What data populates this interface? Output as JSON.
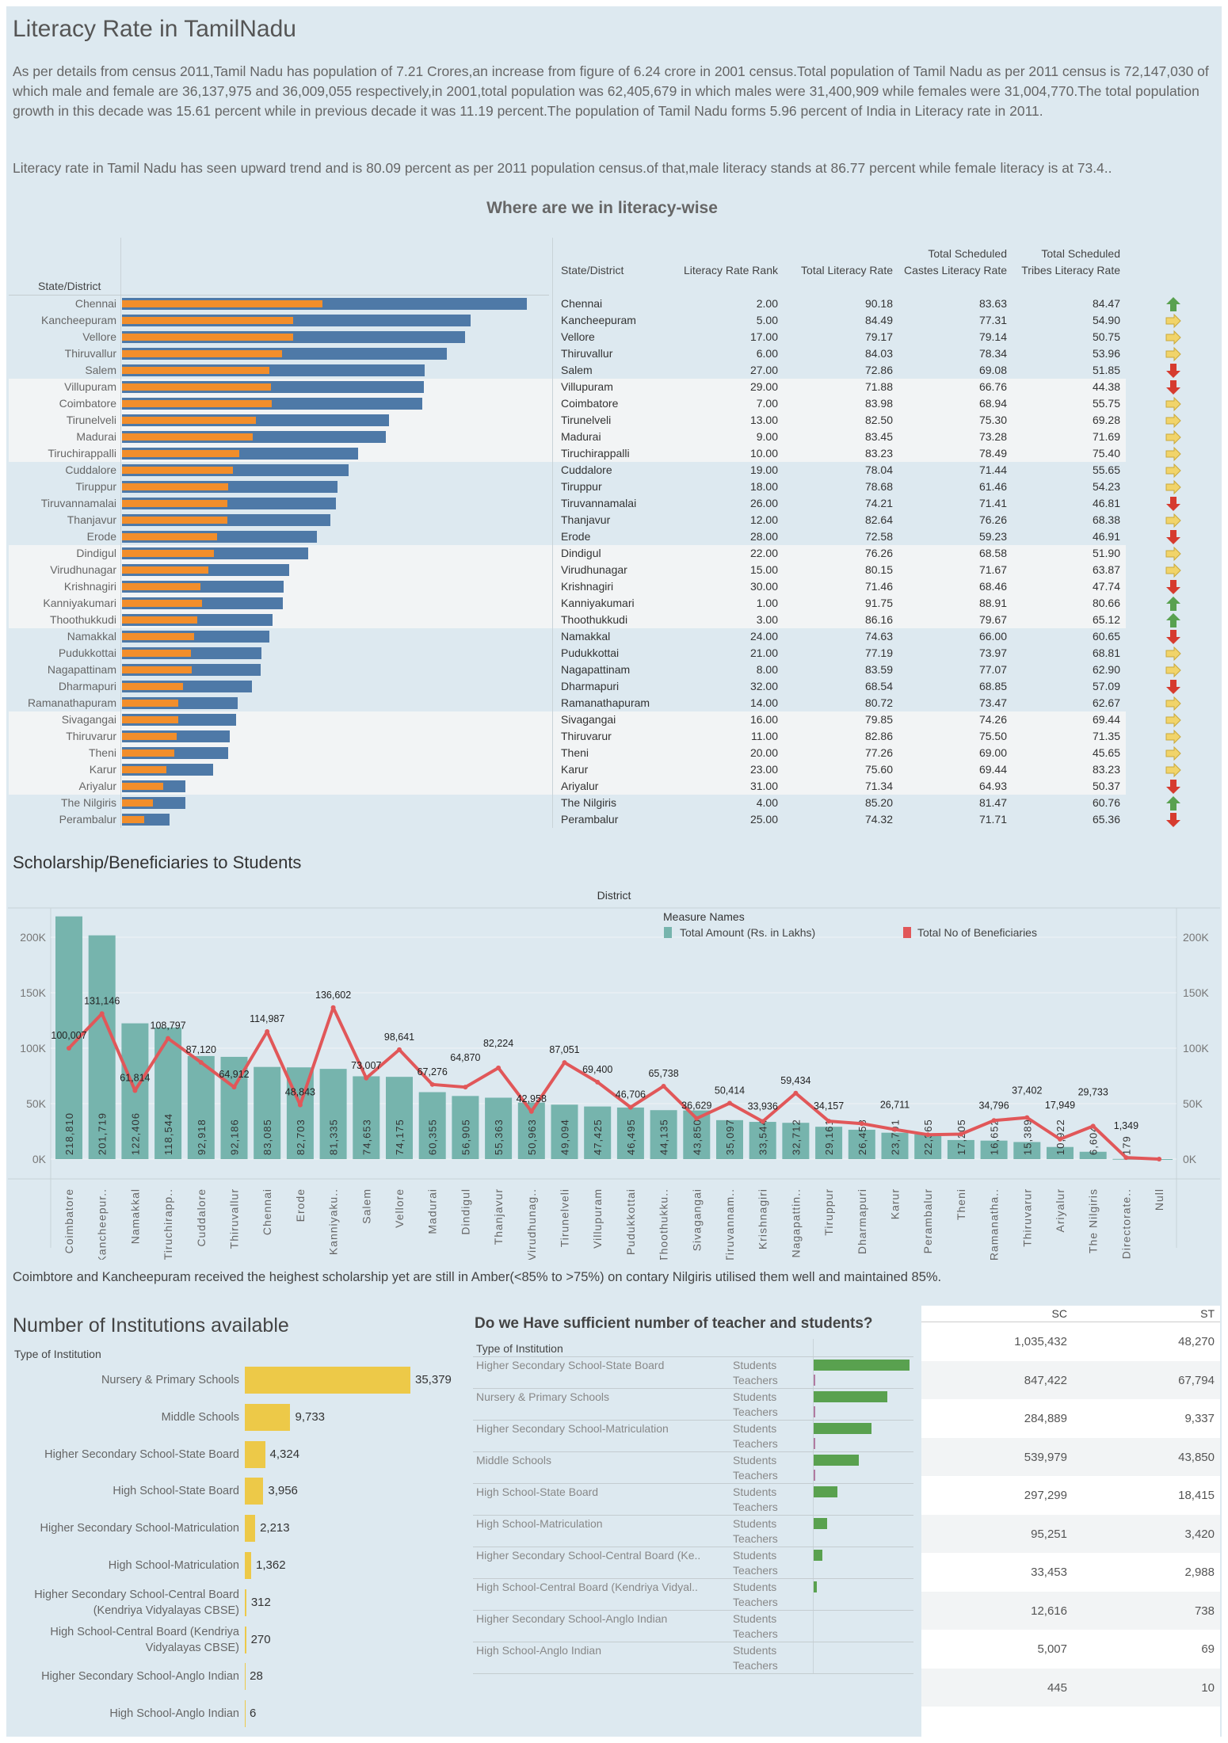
{
  "header": {
    "title": "Literacy Rate in TamilNadu",
    "paragraph1": "As per details from census 2011,Tamil Nadu has population of 7.21 Crores,an increase from figure of 6.24 crore in 2001 census.Total population of Tamil Nadu as per 2011 census is 72,147,030 of which male and female are 36,137,975 and 36,009,055 respectively,in 2001,total population was 62,405,679 in which males were 31,400,909 while females were 31,004,770.The total population growth in this decade was 15.61 percent while in previous decade it was 11.19 percent.The population of Tamil Nadu forms 5.96 percent of India in Literacy rate in 2011.",
    "paragraph2": "Literacy rate in Tamil Nadu has seen upward trend and is 80.09 percent as per 2011 population census.of that,male literacy stands at 86.77 percent while female literacy is at 73.4.."
  },
  "literacy": {
    "title": "Where are we  in literacy-wise",
    "bar_header": "State/District",
    "columns": [
      "State/District",
      "Literacy Rate Rank",
      "Total Literacy Rate",
      "Total Scheduled Castes Literacy Rate",
      "Total Scheduled Tribes Literacy Rate"
    ],
    "colors": {
      "blue": "#4e79a7",
      "orange": "#f28e2b",
      "up": "#59a14f",
      "right": "#f1d46a",
      "down": "#d63b2f"
    },
    "rows": [
      [
        "Chennai",
        "2.00",
        "90.18",
        "83.63",
        "84.47",
        "up",
        365,
        181
      ],
      [
        "Kancheepuram",
        "5.00",
        "84.49",
        "77.31",
        "54.90",
        "right",
        314,
        154
      ],
      [
        "Vellore",
        "17.00",
        "79.17",
        "79.14",
        "50.75",
        "right",
        309,
        154
      ],
      [
        "Thiruvallur",
        "6.00",
        "84.03",
        "78.34",
        "53.96",
        "right",
        293,
        144
      ],
      [
        "Salem",
        "27.00",
        "72.86",
        "69.08",
        "51.85",
        "down",
        273,
        133
      ],
      [
        "Villupuram",
        "29.00",
        "71.88",
        "66.76",
        "44.38",
        "down",
        272,
        134
      ],
      [
        "Coimbatore",
        "7.00",
        "83.98",
        "68.94",
        "55.75",
        "right",
        271,
        135
      ],
      [
        "Tirunelveli",
        "13.00",
        "82.50",
        "75.30",
        "69.28",
        "right",
        241,
        121
      ],
      [
        "Madurai",
        "9.00",
        "83.45",
        "73.28",
        "71.69",
        "right",
        238,
        118
      ],
      [
        "Tiruchirappalli",
        "10.00",
        "83.23",
        "78.49",
        "75.40",
        "right",
        213,
        106
      ],
      [
        "Cuddalore",
        "19.00",
        "78.04",
        "71.44",
        "55.65",
        "right",
        204,
        100
      ],
      [
        "Tiruppur",
        "18.00",
        "78.68",
        "61.46",
        "54.23",
        "right",
        194,
        96
      ],
      [
        "Tiruvannamalai",
        "26.00",
        "74.21",
        "71.41",
        "46.81",
        "down",
        193,
        95
      ],
      [
        "Thanjavur",
        "12.00",
        "82.64",
        "76.26",
        "68.38",
        "right",
        188,
        95
      ],
      [
        "Erode",
        "28.00",
        "72.58",
        "59.23",
        "46.91",
        "down",
        176,
        86
      ],
      [
        "Dindigul",
        "22.00",
        "76.26",
        "68.58",
        "51.90",
        "right",
        168,
        83
      ],
      [
        "Virudhunagar",
        "15.00",
        "80.15",
        "71.67",
        "63.87",
        "right",
        151,
        78
      ],
      [
        "Krishnagiri",
        "30.00",
        "71.46",
        "68.46",
        "47.74",
        "down",
        146,
        71
      ],
      [
        "Kanniyakumari",
        "1.00",
        "91.75",
        "88.91",
        "80.66",
        "up",
        145,
        72
      ],
      [
        "Thoothukkudi",
        "3.00",
        "86.16",
        "79.67",
        "65.12",
        "up",
        136,
        68
      ],
      [
        "Namakkal",
        "24.00",
        "74.63",
        "66.00",
        "60.65",
        "down",
        133,
        65
      ],
      [
        "Pudukkottai",
        "21.00",
        "77.19",
        "73.97",
        "68.81",
        "right",
        126,
        62
      ],
      [
        "Nagapattinam",
        "8.00",
        "83.59",
        "77.07",
        "62.90",
        "right",
        125,
        63
      ],
      [
        "Dharmapuri",
        "32.00",
        "68.54",
        "68.85",
        "57.09",
        "down",
        117,
        55
      ],
      [
        "Ramanathapuram",
        "14.00",
        "80.72",
        "73.47",
        "62.67",
        "right",
        104,
        51
      ],
      [
        "Sivagangai",
        "16.00",
        "79.85",
        "74.26",
        "69.44",
        "right",
        103,
        51
      ],
      [
        "Thiruvarur",
        "11.00",
        "82.86",
        "75.50",
        "71.35",
        "right",
        97,
        49
      ],
      [
        "Theni",
        "20.00",
        "77.26",
        "69.00",
        "45.65",
        "right",
        96,
        47
      ],
      [
        "Karur",
        "23.00",
        "75.60",
        "69.44",
        "83.23",
        "right",
        82,
        40
      ],
      [
        "Ariyalur",
        "31.00",
        "71.34",
        "64.93",
        "50.37",
        "down",
        57,
        37
      ],
      [
        "The Nilgiris",
        "4.00",
        "85.20",
        "81.47",
        "60.76",
        "up",
        57,
        28
      ],
      [
        "Perambalur",
        "25.00",
        "74.32",
        "71.71",
        "65.36",
        "down",
        43,
        20
      ]
    ]
  },
  "scholarship": {
    "title": "Scholarship/Beneficiaries to Students",
    "comment": "Coimbtore and Kancheepuram received the heighest scholarship yet are still in Amber(<85% to >75%) on contary Nilgiris utilised them well and maintained 85%."
  },
  "chart_data": {
    "type": "bar+line",
    "xlabel": "District",
    "ylim": [
      0,
      230000
    ],
    "yticks": [
      "0K",
      "50K",
      "100K",
      "150K",
      "200K"
    ],
    "legend_title": "Measure Names",
    "legend": [
      "Total Amount (Rs. in Lakhs)",
      "Total No of Beneficiaries"
    ],
    "colors": {
      "amount": "#76b4ad",
      "beneficiaries": "#e15759"
    },
    "categories": [
      "Coimbatore",
      "Kancheepur..",
      "Namakkal",
      "Tiruchirapp..",
      "Cuddalore",
      "Thiruvallur",
      "Chennai",
      "Erode",
      "Kanniyaku..",
      "Salem",
      "Vellore",
      "Madurai",
      "Dindigul",
      "Thanjavur",
      "Virudhunag..",
      "Tirunelveli",
      "Villupuram",
      "Pudukkottai",
      "Thoothukku..",
      "Sivagangai",
      "Tiruvannam..",
      "Krishnagiri",
      "Nagapattin..",
      "Tiruppur",
      "Dharmapuri",
      "Karur",
      "Perambalur",
      "Theni",
      "Ramanatha..",
      "Thiruvarur",
      "Ariyalur",
      "The Nilgiris",
      "Directorate..",
      "Null"
    ],
    "amount": [
      218810,
      201719,
      122406,
      118544,
      92918,
      92186,
      83085,
      82703,
      81335,
      74653,
      74175,
      60355,
      56905,
      55363,
      50963,
      49094,
      47425,
      46495,
      44135,
      43850,
      35097,
      33544,
      32712,
      29161,
      26458,
      23791,
      22365,
      17205,
      16652,
      15389,
      10922,
      6604,
      179,
      0
    ],
    "beneficiaries": [
      100007,
      131146,
      61814,
      108797,
      87120,
      64912,
      114987,
      48843,
      136602,
      73007,
      98641,
      67276,
      64870,
      82224,
      42958,
      87051,
      69400,
      46706,
      65738,
      36629,
      50414,
      33936,
      59434,
      34157,
      32000,
      26711,
      22000,
      22500,
      34796,
      37402,
      17949,
      29733,
      1349,
      0
    ],
    "beneficiaries_labeled": [
      1,
      1,
      1,
      1,
      1,
      1,
      1,
      1,
      1,
      1,
      1,
      1,
      1,
      1,
      1,
      1,
      1,
      1,
      1,
      1,
      1,
      1,
      1,
      1,
      0,
      1,
      0,
      0,
      1,
      1,
      1,
      1,
      1,
      0
    ]
  },
  "institutions": {
    "title": "Number of Institutions available",
    "axis_header": "Type of Institution",
    "color": "#edc948",
    "rows": [
      [
        "Nursery & Primary Schools",
        35379,
        "35,379"
      ],
      [
        "Middle Schools",
        9733,
        "9,733"
      ],
      [
        "Higher Secondary School-State Board",
        4324,
        "4,324"
      ],
      [
        "High School-State Board",
        3956,
        "3,956"
      ],
      [
        "Higher Secondary School-Matriculation",
        2213,
        "2,213"
      ],
      [
        "High School-Matriculation",
        1362,
        "1,362"
      ],
      [
        "Higher Secondary School-Central Board\n(Kendriya Vidyalayas CBSE)",
        312,
        "312"
      ],
      [
        "High School-Central Board (Kendriya\nVidyalayas CBSE)",
        270,
        "270"
      ],
      [
        "Higher Secondary School-Anglo Indian",
        28,
        "28"
      ],
      [
        "High School-Anglo Indian",
        6,
        "6"
      ]
    ]
  },
  "teachers": {
    "title": "Do we Have sufficient number of teacher and students?",
    "axis_header": "Type of Institution",
    "measures": [
      "Students",
      "Teachers"
    ],
    "colors": {
      "students": "#59a14f",
      "teachers": "#b07aa1"
    },
    "rows": [
      [
        "Higher Secondary School-State Board",
        1.0,
        0.02
      ],
      [
        "Nursery & Primary Schools",
        0.77,
        0.02
      ],
      [
        "Higher Secondary School-Matriculation",
        0.6,
        0.01
      ],
      [
        "Middle Schools",
        0.47,
        0.01
      ],
      [
        "High School-State Board",
        0.25,
        0
      ],
      [
        "High School-Matriculation",
        0.14,
        0
      ],
      [
        "Higher Secondary School-Central Board (Ke..",
        0.09,
        0
      ],
      [
        "High School-Central Board (Kendriya Vidyal..",
        0.03,
        0
      ],
      [
        "Higher Secondary School-Anglo Indian",
        0,
        0
      ],
      [
        "High School-Anglo Indian",
        0,
        0
      ]
    ]
  },
  "sc_st": {
    "columns": [
      "SC",
      "ST"
    ],
    "rows": [
      [
        "1,035,432",
        "48,270"
      ],
      [
        "847,422",
        "67,794"
      ],
      [
        "284,889",
        "9,337"
      ],
      [
        "539,979",
        "43,850"
      ],
      [
        "297,299",
        "18,415"
      ],
      [
        "95,251",
        "3,420"
      ],
      [
        "33,453",
        "2,988"
      ],
      [
        "12,616",
        "738"
      ],
      [
        "5,007",
        "69"
      ],
      [
        "445",
        "10"
      ]
    ]
  }
}
